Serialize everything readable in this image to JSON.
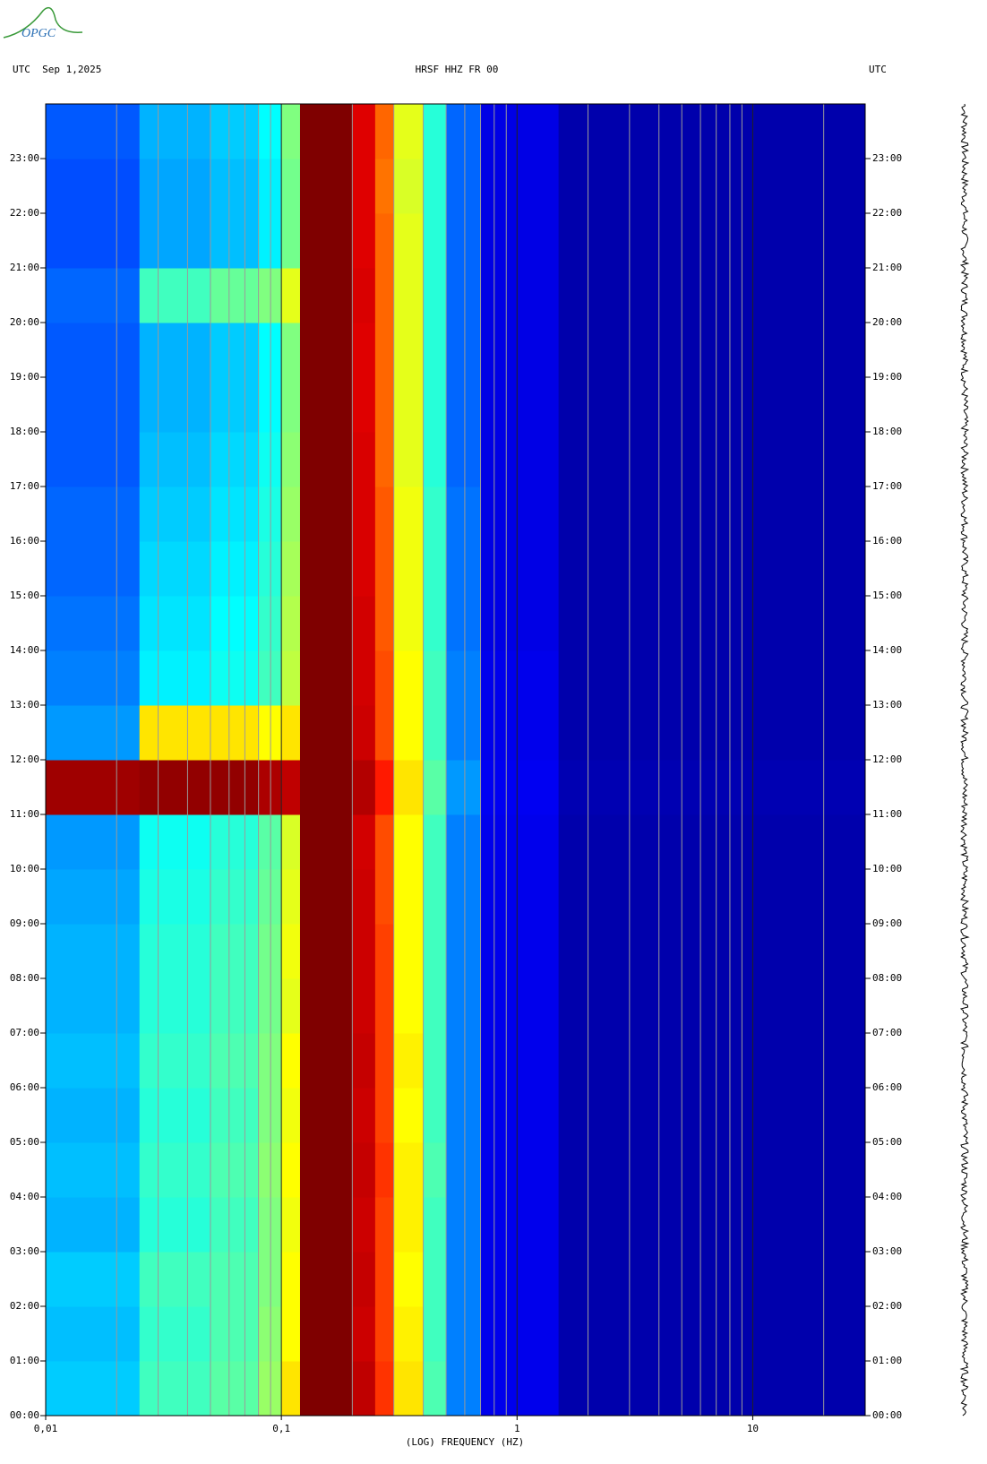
{
  "logo": "OPGC",
  "chart_data": {
    "type": "spectrogram",
    "title": "HRSF HHZ FR 00",
    "left_label": "UTC  Sep 1,2025",
    "right_label": "UTC",
    "x_label": "(LOG) FREQUENCY (HZ)",
    "log_x": true,
    "xlim": [
      0.01,
      30
    ],
    "xticks": [
      {
        "value": 0.01,
        "label": "0,01"
      },
      {
        "value": 0.1,
        "label": "0,1"
      },
      1,
      10
    ],
    "xminorticks": [
      0.02,
      0.03,
      0.04,
      0.05,
      0.06,
      0.07,
      0.08,
      0.09,
      0.2,
      0.3,
      0.4,
      0.5,
      0.6,
      0.7,
      0.8,
      0.9,
      2,
      3,
      4,
      5,
      6,
      7,
      8,
      9,
      20
    ],
    "grid": true,
    "ylim": [
      0,
      24
    ],
    "yticks": [
      {
        "value": 0,
        "label": "00:00"
      },
      {
        "value": 1,
        "label": "01:00"
      },
      {
        "value": 2,
        "label": "02:00"
      },
      {
        "value": 3,
        "label": "03:00"
      },
      {
        "value": 4,
        "label": "04:00"
      },
      {
        "value": 5,
        "label": "05:00"
      },
      {
        "value": 6,
        "label": "06:00"
      },
      {
        "value": 7,
        "label": "07:00"
      },
      {
        "value": 8,
        "label": "08:00"
      },
      {
        "value": 9,
        "label": "09:00"
      },
      {
        "value": 10,
        "label": "10:00"
      },
      {
        "value": 11,
        "label": "11:00"
      },
      {
        "value": 12,
        "label": "12:00"
      },
      {
        "value": 13,
        "label": "13:00"
      },
      {
        "value": 14,
        "label": "14:00"
      },
      {
        "value": 15,
        "label": "15:00"
      },
      {
        "value": 16,
        "label": "16:00"
      },
      {
        "value": 17,
        "label": "17:00"
      },
      {
        "value": 18,
        "label": "18:00"
      },
      {
        "value": 19,
        "label": "19:00"
      },
      {
        "value": 20,
        "label": "20:00"
      },
      {
        "value": 21,
        "label": "21:00"
      },
      {
        "value": 22,
        "label": "22:00"
      },
      {
        "value": 23,
        "label": "23:00"
      }
    ],
    "colormap": [
      "#00007f",
      "#0000ff",
      "#00ffff",
      "#ffff00",
      "#ff0000",
      "#7f0000"
    ],
    "xbins": [
      0.01,
      0.025,
      0.05,
      0.08,
      0.1,
      0.12,
      0.2,
      0.25,
      0.3,
      0.4,
      0.5,
      0.7,
      1.5,
      30
    ],
    "ybins": [
      0,
      1,
      2,
      3,
      4,
      5,
      6,
      7,
      8,
      9,
      10,
      11,
      12,
      13,
      14,
      15,
      16,
      17,
      18,
      19,
      20,
      21,
      22,
      23,
      24
    ],
    "z": [
      [
        0.36,
        0.45,
        0.47,
        0.52,
        0.62,
        1.0,
        0.9,
        0.76,
        0.62,
        0.46,
        0.3,
        0.17,
        0.07
      ],
      [
        0.35,
        0.44,
        0.46,
        0.51,
        0.6,
        1.0,
        0.88,
        0.75,
        0.61,
        0.45,
        0.3,
        0.17,
        0.07
      ],
      [
        0.36,
        0.45,
        0.46,
        0.5,
        0.6,
        1.0,
        0.89,
        0.75,
        0.6,
        0.45,
        0.3,
        0.17,
        0.07
      ],
      [
        0.34,
        0.43,
        0.45,
        0.5,
        0.59,
        1.0,
        0.88,
        0.75,
        0.61,
        0.45,
        0.3,
        0.17,
        0.07
      ],
      [
        0.35,
        0.44,
        0.46,
        0.51,
        0.6,
        1.0,
        0.89,
        0.76,
        0.61,
        0.46,
        0.3,
        0.17,
        0.07
      ],
      [
        0.34,
        0.43,
        0.45,
        0.5,
        0.59,
        1.0,
        0.88,
        0.75,
        0.6,
        0.45,
        0.3,
        0.17,
        0.07
      ],
      [
        0.35,
        0.44,
        0.46,
        0.5,
        0.6,
        1.0,
        0.89,
        0.75,
        0.61,
        0.45,
        0.3,
        0.17,
        0.07
      ],
      [
        0.34,
        0.43,
        0.45,
        0.49,
        0.58,
        1.0,
        0.88,
        0.75,
        0.6,
        0.45,
        0.3,
        0.17,
        0.07
      ],
      [
        0.34,
        0.43,
        0.45,
        0.49,
        0.59,
        1.0,
        0.88,
        0.75,
        0.6,
        0.45,
        0.3,
        0.17,
        0.07
      ],
      [
        0.33,
        0.42,
        0.44,
        0.48,
        0.58,
        1.0,
        0.88,
        0.74,
        0.6,
        0.45,
        0.3,
        0.17,
        0.07
      ],
      [
        0.32,
        0.41,
        0.43,
        0.47,
        0.57,
        1.0,
        0.87,
        0.74,
        0.6,
        0.45,
        0.3,
        0.17,
        0.07
      ],
      [
        0.95,
        0.97,
        0.97,
        0.93,
        0.9,
        1.0,
        0.92,
        0.78,
        0.62,
        0.47,
        0.32,
        0.18,
        0.08
      ],
      [
        0.32,
        0.62,
        0.62,
        0.6,
        0.62,
        1.0,
        0.88,
        0.74,
        0.6,
        0.45,
        0.3,
        0.17,
        0.07
      ],
      [
        0.3,
        0.39,
        0.41,
        0.45,
        0.55,
        1.0,
        0.87,
        0.74,
        0.6,
        0.45,
        0.3,
        0.17,
        0.07
      ],
      [
        0.29,
        0.38,
        0.4,
        0.44,
        0.54,
        1.0,
        0.87,
        0.73,
        0.59,
        0.44,
        0.29,
        0.16,
        0.07
      ],
      [
        0.28,
        0.37,
        0.39,
        0.43,
        0.53,
        1.0,
        0.86,
        0.73,
        0.59,
        0.44,
        0.29,
        0.16,
        0.07
      ],
      [
        0.28,
        0.36,
        0.38,
        0.42,
        0.52,
        1.0,
        0.86,
        0.73,
        0.59,
        0.44,
        0.29,
        0.16,
        0.07
      ],
      [
        0.27,
        0.35,
        0.37,
        0.41,
        0.51,
        1.0,
        0.86,
        0.72,
        0.58,
        0.43,
        0.28,
        0.16,
        0.07
      ],
      [
        0.27,
        0.34,
        0.36,
        0.4,
        0.5,
        1.0,
        0.85,
        0.72,
        0.58,
        0.43,
        0.28,
        0.16,
        0.07
      ],
      [
        0.27,
        0.34,
        0.36,
        0.4,
        0.5,
        1.0,
        0.85,
        0.72,
        0.58,
        0.43,
        0.28,
        0.16,
        0.07
      ],
      [
        0.28,
        0.45,
        0.48,
        0.5,
        0.58,
        1.0,
        0.86,
        0.72,
        0.58,
        0.43,
        0.28,
        0.16,
        0.07
      ],
      [
        0.26,
        0.33,
        0.35,
        0.39,
        0.49,
        1.0,
        0.85,
        0.72,
        0.58,
        0.43,
        0.28,
        0.16,
        0.07
      ],
      [
        0.26,
        0.33,
        0.35,
        0.39,
        0.49,
        1.0,
        0.85,
        0.71,
        0.57,
        0.43,
        0.28,
        0.16,
        0.07
      ],
      [
        0.27,
        0.34,
        0.36,
        0.4,
        0.5,
        1.0,
        0.85,
        0.72,
        0.58,
        0.43,
        0.28,
        0.16,
        0.07
      ]
    ]
  }
}
